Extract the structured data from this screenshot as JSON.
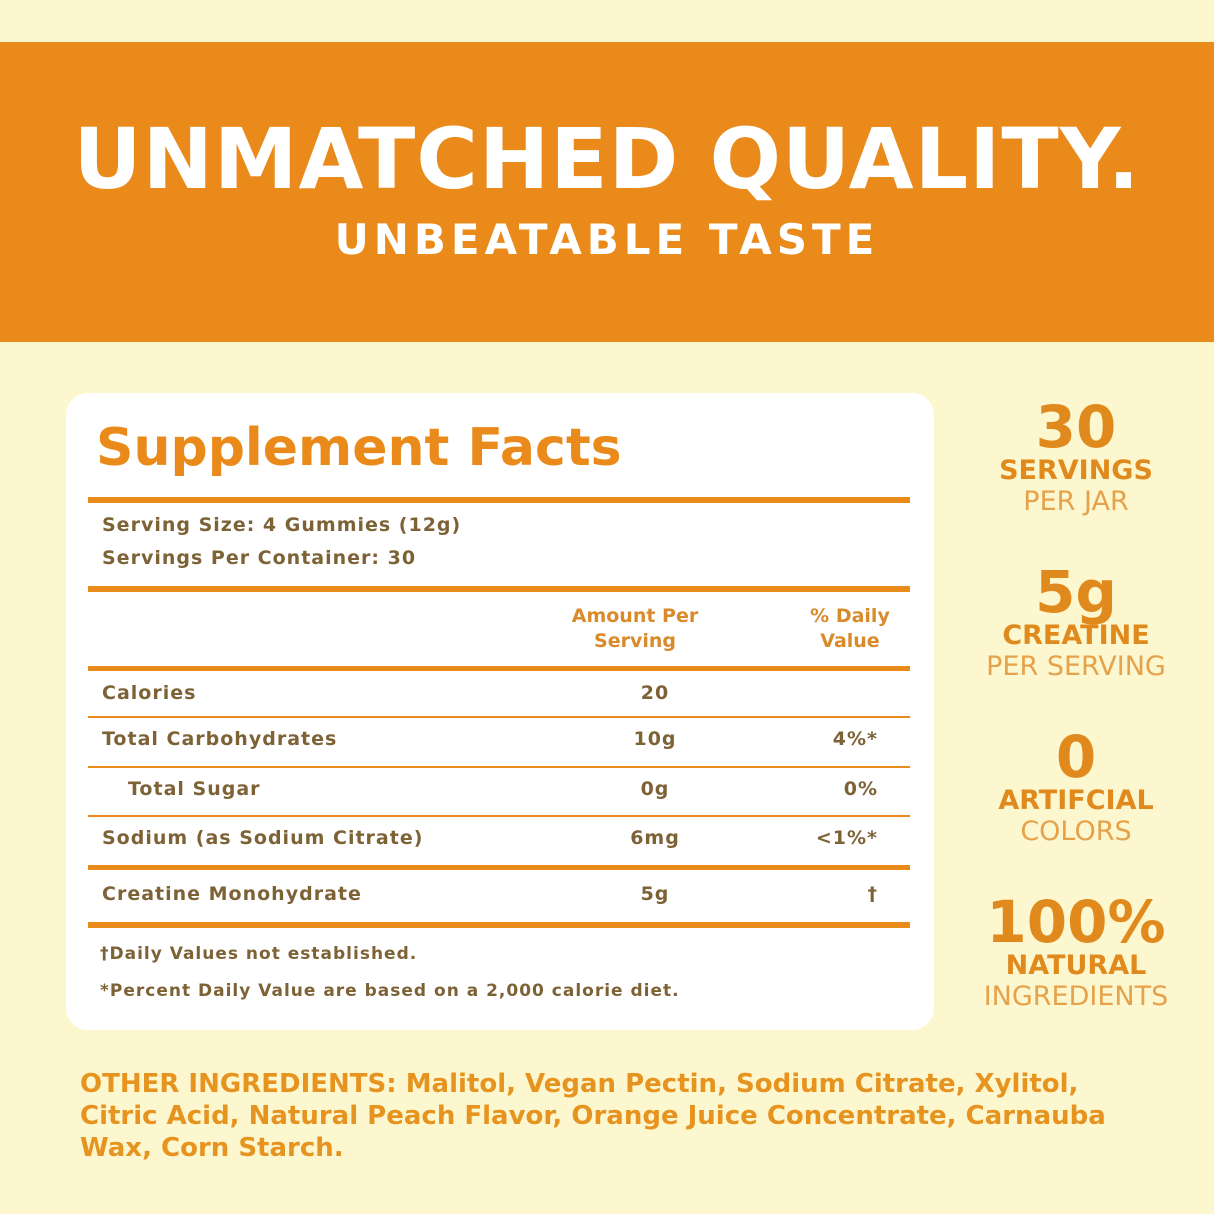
{
  "header": {
    "title": "UNMATCHED QUALITY.",
    "subtitle": "UNBEATABLE TASTE"
  },
  "facts": {
    "title": "Supplement Facts",
    "serving_size": "Serving Size: 4 Gummies (12g)",
    "servings_per_container": "Servings Per Container: 30",
    "columns": [
      "Amount Per Serving",
      "% Daily Value"
    ],
    "rows": [
      {
        "name": "Calories",
        "amount": "20"
      },
      {
        "name": "Total Carbohydrates",
        "amount": "10g",
        "daily_value": "4%*"
      },
      {
        "name": "Total Sugar",
        "amount": "0g",
        "daily_value": "0%",
        "indent": true
      },
      {
        "name": "Sodium (as Sodium Citrate)",
        "amount": "6mg",
        "daily_value": "<1%*"
      },
      {
        "name": "Creatine Monohydrate",
        "amount": "5g",
        "daily_value": "†"
      }
    ],
    "footnotes": [
      "†Daily Values not established.",
      "*Percent Daily Value are based on a 2,000 calorie diet."
    ]
  },
  "stats": [
    {
      "value": "30",
      "label": "SERVINGS",
      "sub": "PER JAR"
    },
    {
      "value": "5g",
      "label": "CREATINE",
      "sub": "PER SERVING"
    },
    {
      "value": "0",
      "label": "ARTIFCIAL",
      "sub": "COLORS"
    },
    {
      "value": "100%",
      "label": "NATURAL",
      "sub": "INGREDIENTS"
    }
  ],
  "other_ingredients": {
    "label": "OTHER INGREDIENTS:",
    "text": "Malitol, Vegan Pectin, Sodium Citrate, Xylitol, Citric Acid, Natural Peach Flavor, Orange Juice Concentrate, Carnauba Wax, Corn Starch."
  }
}
